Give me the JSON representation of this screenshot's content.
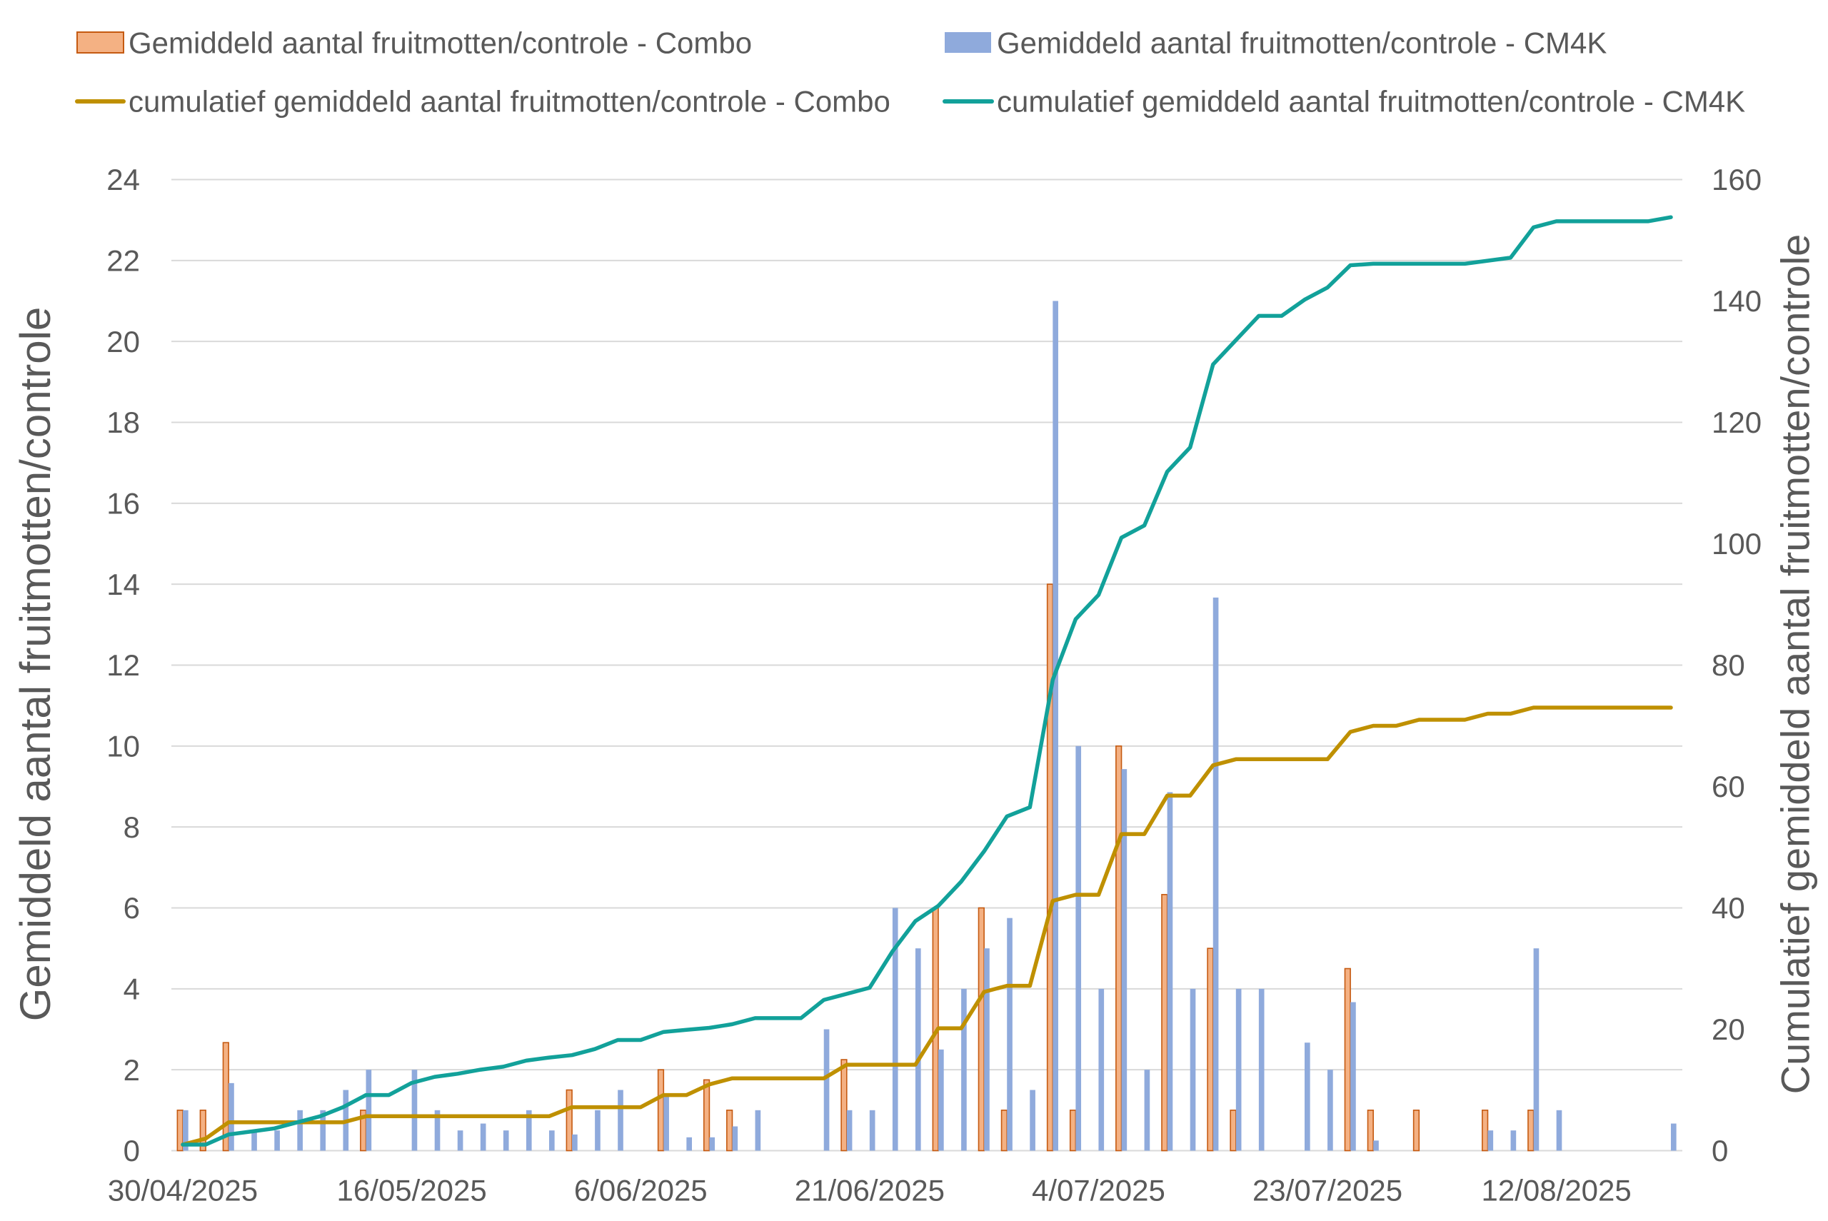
{
  "chart_data": {
    "type": "bar",
    "categories": [
      "30/04/2025",
      "",
      "",
      "",
      "",
      "",
      "",
      "",
      "",
      "",
      "16/05/2025",
      "",
      "",
      "",
      "",
      "",
      "",
      "",
      "",
      "",
      "6/06/2025",
      "",
      "",
      "",
      "",
      "",
      "",
      "",
      "",
      "",
      "21/06/2025",
      "",
      "",
      "",
      "",
      "",
      "",
      "",
      "",
      "",
      "4/07/2025",
      "",
      "",
      "",
      "",
      "",
      "",
      "",
      "",
      "",
      "23/07/2025",
      "",
      "",
      "",
      "",
      "",
      "",
      "",
      "",
      "",
      "12/08/2025",
      "",
      "",
      "",
      "",
      ""
    ],
    "series": [
      {
        "name": "Gemiddeld aantal fruitmotten/controle - Combo",
        "type": "bar",
        "axis": "left",
        "color": "#F4B183",
        "border_color": "#C55A11",
        "values": [
          1,
          1,
          2.67,
          0,
          0,
          0,
          0,
          0,
          1,
          0,
          0,
          0,
          0,
          0,
          0,
          0,
          0,
          1.5,
          0,
          0,
          0,
          2,
          0,
          1.75,
          1,
          0,
          0,
          0,
          0,
          2.25,
          0,
          0,
          0,
          6,
          0,
          6,
          1,
          0,
          14,
          1,
          0,
          10,
          0,
          6.33,
          0,
          5,
          1,
          0,
          0,
          0,
          0,
          4.5,
          1,
          0,
          1,
          0,
          0,
          1,
          0,
          1,
          0,
          0,
          0,
          0,
          0,
          0
        ]
      },
      {
        "name": "Gemiddeld aantal fruitmotten/controle - CM4K",
        "type": "bar",
        "axis": "left",
        "color": "#8FAADC",
        "values": [
          1,
          0,
          1.67,
          0.5,
          0.5,
          1,
          1,
          1.5,
          2,
          0,
          2,
          1,
          0.5,
          0.67,
          0.5,
          1,
          0.5,
          0.4,
          1,
          1.5,
          0,
          1.33,
          0.33,
          0.33,
          0.6,
          1,
          0,
          0,
          3,
          1,
          1,
          6,
          5,
          2.5,
          4,
          5,
          5.75,
          1.5,
          21,
          10,
          4,
          9.43,
          2,
          8.86,
          4,
          13.67,
          4,
          4,
          0,
          2.67,
          2,
          3.67,
          0.25,
          0,
          0,
          0,
          0,
          0.5,
          0.5,
          5,
          1,
          0,
          0,
          0,
          0,
          0.67
        ]
      },
      {
        "name": "cumulatief gemiddeld aantal fruitmotten/controle - Combo",
        "type": "line",
        "axis": "right",
        "color": "#BF9000",
        "values": [
          1,
          2,
          4.67,
          4.67,
          4.67,
          4.67,
          4.67,
          4.67,
          5.67,
          5.67,
          5.67,
          5.67,
          5.67,
          5.67,
          5.67,
          5.67,
          5.67,
          7.17,
          7.17,
          7.17,
          7.17,
          9.17,
          9.17,
          10.92,
          11.92,
          11.92,
          11.92,
          11.92,
          11.92,
          14.17,
          14.17,
          14.17,
          14.17,
          20.17,
          20.17,
          26.17,
          27.17,
          27.17,
          41.17,
          42.17,
          42.17,
          52.17,
          52.17,
          58.5,
          58.5,
          63.5,
          64.5,
          64.5,
          64.5,
          64.5,
          64.5,
          69,
          70,
          70,
          71,
          71,
          71,
          72,
          72,
          73,
          73,
          73,
          73,
          73,
          73,
          73
        ]
      },
      {
        "name": "cumulatief gemiddeld aantal fruitmotten/controle - CM4K",
        "type": "line",
        "axis": "right",
        "color": "#12A19A",
        "values": [
          1,
          1,
          2.67,
          3.17,
          3.67,
          4.67,
          5.67,
          7.17,
          9.17,
          9.17,
          11.17,
          12.17,
          12.67,
          13.34,
          13.84,
          14.84,
          15.34,
          15.74,
          16.74,
          18.24,
          18.24,
          19.57,
          19.9,
          20.23,
          20.83,
          21.83,
          21.83,
          21.83,
          24.83,
          25.83,
          26.83,
          32.83,
          37.83,
          40.33,
          44.33,
          49.33,
          55.08,
          56.58,
          77.58,
          87.58,
          91.58,
          101.01,
          103.01,
          111.87,
          115.87,
          129.54,
          133.54,
          137.54,
          137.54,
          140.21,
          142.21,
          145.88,
          146.13,
          146.13,
          146.13,
          146.13,
          146.13,
          146.63,
          147.13,
          152.13,
          153.13,
          153.13,
          153.13,
          153.13,
          153.13,
          153.8
        ]
      }
    ],
    "y_left": {
      "label": "Gemiddeld aantal fruitmotten/controle",
      "ylim": [
        0,
        24
      ],
      "ticks": [
        0,
        2,
        4,
        6,
        8,
        10,
        12,
        14,
        16,
        18,
        20,
        22,
        24
      ]
    },
    "y_right": {
      "label": "Cumulatief gemiddeld aantal fruitmotten/controle",
      "ylim": [
        0,
        160
      ],
      "ticks": [
        0,
        20,
        40,
        60,
        80,
        100,
        120,
        140,
        160
      ]
    },
    "grid": true,
    "legend_position": "top"
  }
}
